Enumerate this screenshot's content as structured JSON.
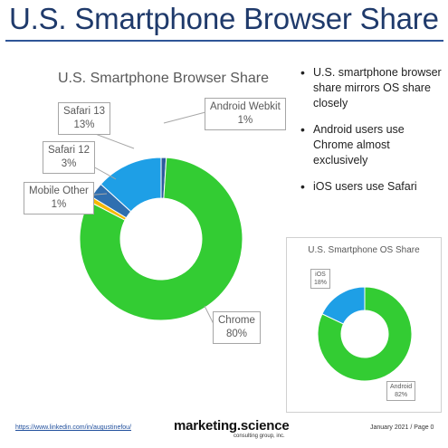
{
  "slide": {
    "title": "U.S. Smartphone Browser Share",
    "bullets": [
      "U.S. smartphone browser share mirrors OS share closely",
      "Android users use Chrome almost exclusively",
      "iOS users use Safari"
    ],
    "colors": {
      "title": "#1f3a6b",
      "rule": "#2f5597"
    }
  },
  "chart_data": [
    {
      "type": "pie",
      "title": "U.S. Smartphone Browser Share",
      "categories": [
        "Chrome",
        "Android Webkit",
        "Safari 13",
        "Safari 12",
        "Mobile Other"
      ],
      "values": [
        80,
        1,
        13,
        3,
        1
      ],
      "labels": [
        "80%",
        "1%",
        "13%",
        "3%",
        "1%"
      ],
      "colors": [
        "#33cc33",
        "#2e5c9e",
        "#1e9fe6",
        "#2f6fb0",
        "#f5b800"
      ],
      "legend": "none"
    },
    {
      "type": "pie",
      "title": "U.S. Smartphone OS Share",
      "categories": [
        "Android",
        "iOS"
      ],
      "values": [
        82,
        18
      ],
      "labels": [
        "82%",
        "18%"
      ],
      "colors": [
        "#33cc33",
        "#1e9fe6"
      ],
      "legend": "none"
    }
  ],
  "footer": {
    "link": "https://www.linkedin.com/in/augustinefou/",
    "brand": "marketing.science",
    "brand_sub": "consulting group, inc.",
    "date_page": "January 2021 / Page 0"
  }
}
